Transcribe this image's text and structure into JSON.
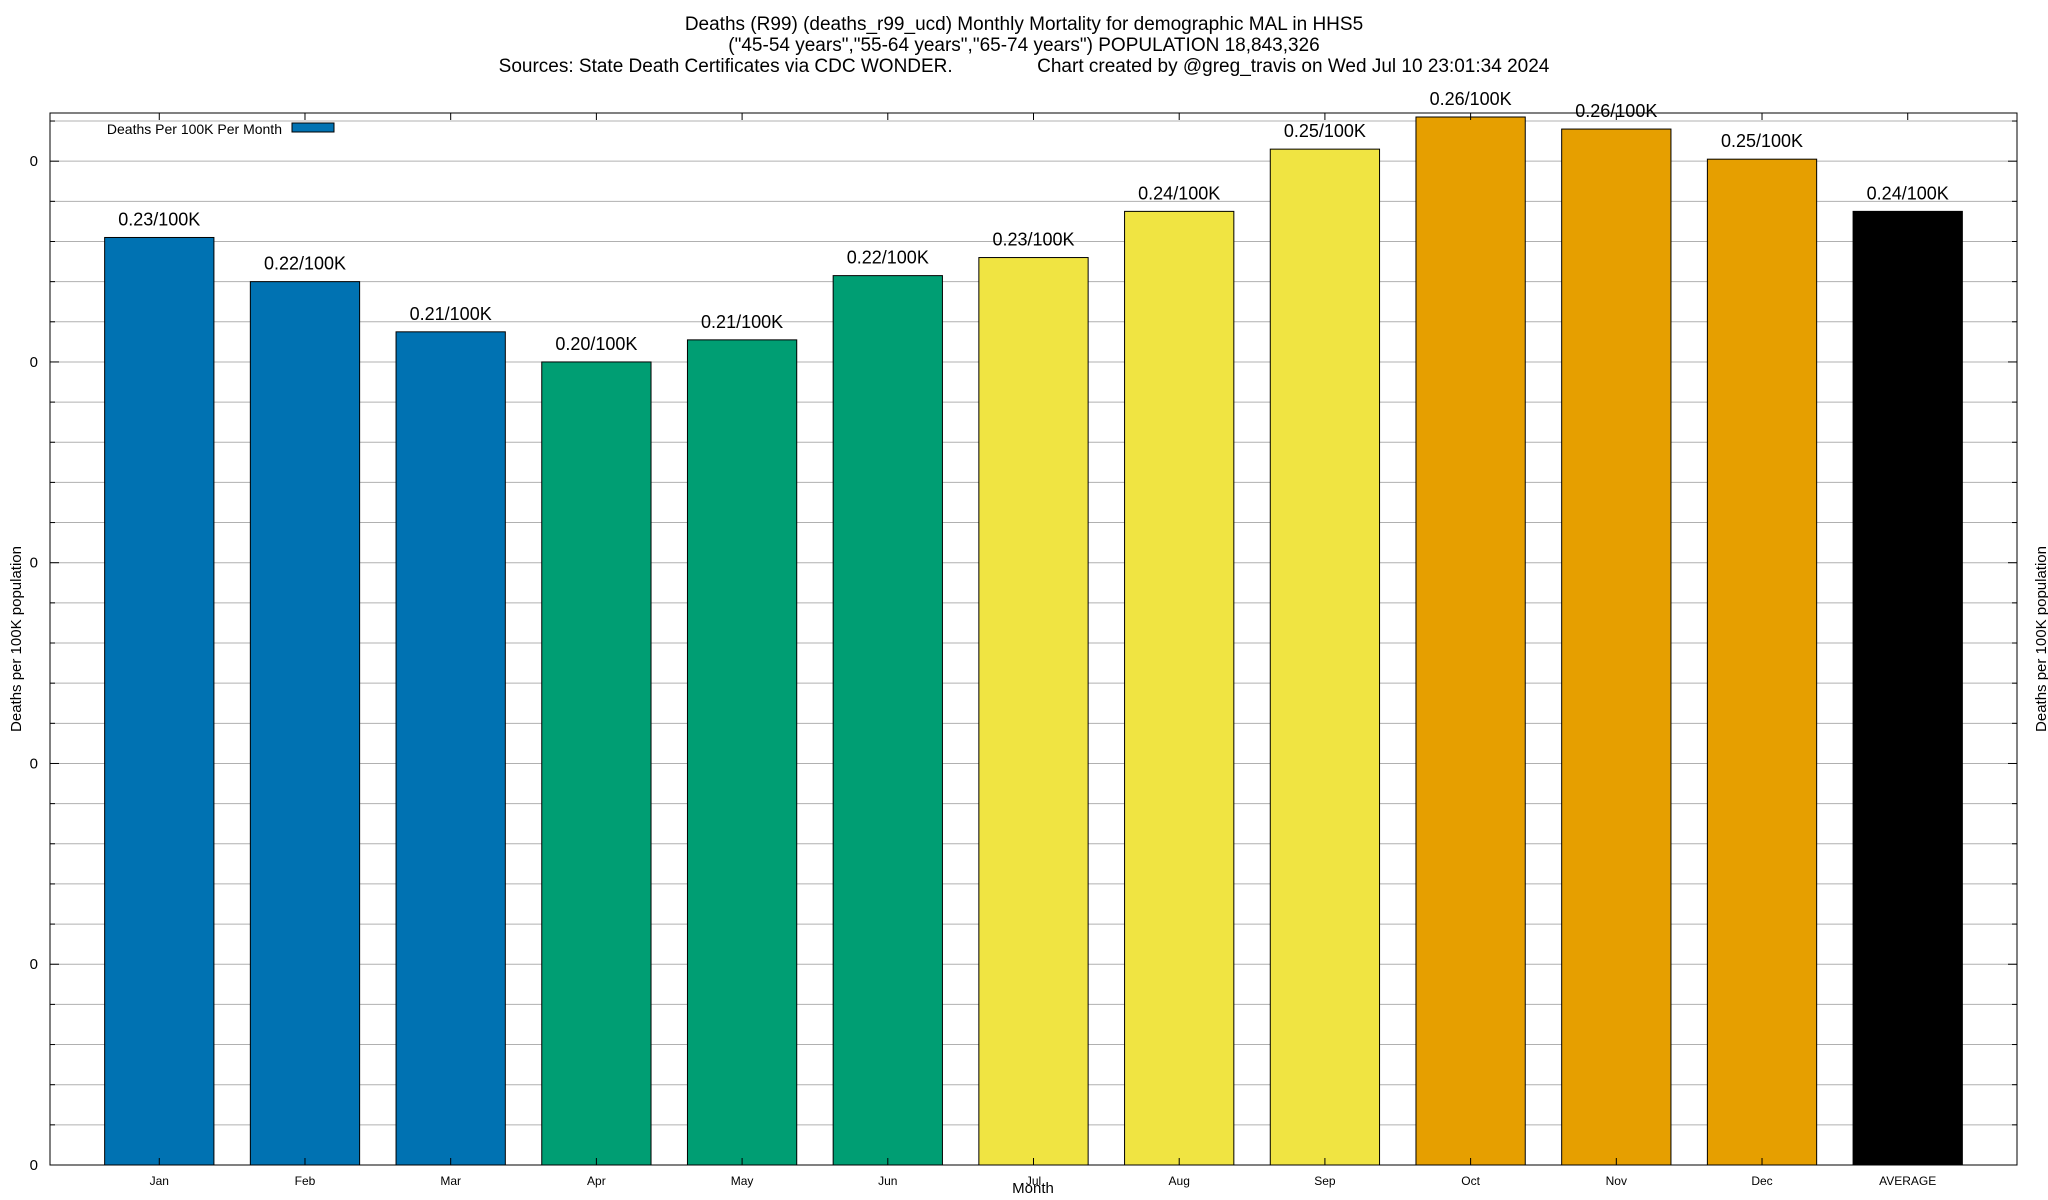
{
  "chart_data": {
    "type": "bar",
    "title_lines": [
      "Deaths (R99) (deaths_r99_ucd) Monthly Mortality for demographic MAL in HHS5",
      "(\"45-54 years\",\"55-64 years\",\"65-74 years\") POPULATION 18,843,326",
      "Sources: State Death Certificates via CDC WONDER.                Chart created by @greg_travis on Wed Jul 10 23:01:34 2024"
    ],
    "xlabel": "Month",
    "ylabel": "Deaths per 100K population",
    "y2label": "Deaths per 100K population",
    "categories": [
      "Jan",
      "Feb",
      "Mar",
      "Apr",
      "May",
      "Jun",
      "Jul",
      "Aug",
      "Sep",
      "Oct",
      "Nov",
      "Dec",
      "AVERAGE"
    ],
    "values": [
      0.231,
      0.22,
      0.2075,
      0.2,
      0.2055,
      0.2215,
      0.226,
      0.2375,
      0.253,
      0.261,
      0.258,
      0.2505,
      0.2375
    ],
    "data_labels": [
      "0.23/100K",
      "0.22/100K",
      "0.21/100K",
      "0.20/100K",
      "0.21/100K",
      "0.22/100K",
      "0.23/100K",
      "0.24/100K",
      "0.25/100K",
      "0.26/100K",
      "0.26/100K",
      "0.25/100K",
      "0.24/100K"
    ],
    "bar_colors": [
      "#0072b2",
      "#0072b2",
      "#0072b2",
      "#009e73",
      "#009e73",
      "#009e73",
      "#f0e442",
      "#f0e442",
      "#f0e442",
      "#e69f00",
      "#e69f00",
      "#e69f00",
      "#000000"
    ],
    "ylim": [
      0,
      0.262
    ],
    "ytick_values": [
      0,
      0.05,
      0.1,
      0.15,
      0.2,
      0.25
    ],
    "ytick_labels": [
      "0",
      "0",
      "0",
      "0",
      "0",
      "0"
    ],
    "grid": true,
    "legend": {
      "placement": "top-left",
      "entries": [
        {
          "name": "Deaths Per 100K Per Month",
          "color": "#0072b2"
        }
      ]
    }
  }
}
